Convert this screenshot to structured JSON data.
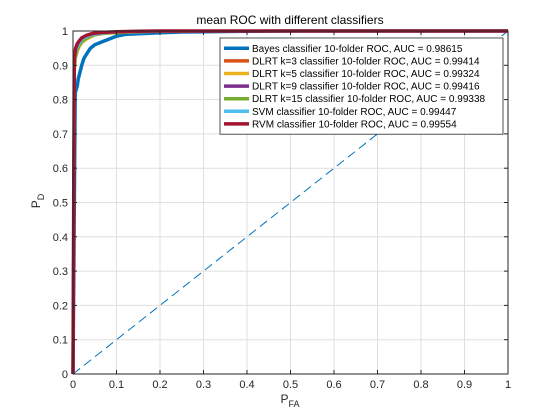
{
  "chart_data": {
    "type": "line",
    "title": "mean ROC with different classifiers",
    "xlabel": "P",
    "xlabel_sub": "FA",
    "ylabel": "P",
    "ylabel_sub": "D",
    "xlim": [
      0,
      1
    ],
    "ylim": [
      0,
      1
    ],
    "xticks": [
      0,
      0.1,
      0.2,
      0.3,
      0.4,
      0.5,
      0.6,
      0.7,
      0.8,
      0.9,
      1
    ],
    "yticks": [
      0,
      0.1,
      0.2,
      0.3,
      0.4,
      0.5,
      0.6,
      0.7,
      0.8,
      0.9,
      1
    ],
    "xtick_labels": [
      "0",
      "0.1",
      "0.2",
      "0.3",
      "0.4",
      "0.5",
      "0.6",
      "0.7",
      "0.8",
      "0.9",
      "1"
    ],
    "ytick_labels": [
      "0",
      "0.1",
      "0.2",
      "0.3",
      "0.4",
      "0.5",
      "0.6",
      "0.7",
      "0.8",
      "0.9",
      "1"
    ],
    "grid": true,
    "legend_position": "top-right",
    "series": [
      {
        "name": "Bayes classifier 10-folder ROC, AUC = 0.98615",
        "color": "#0072BD",
        "x": [
          0,
          0.005,
          0.01,
          0.012,
          0.016,
          0.02,
          0.025,
          0.03,
          0.035,
          0.04,
          0.05,
          0.06,
          0.07,
          0.08,
          0.09,
          0.1,
          0.12,
          0.15,
          0.2,
          0.25,
          0.3,
          0.4,
          0.5,
          1
        ],
        "y": [
          0,
          0.82,
          0.84,
          0.86,
          0.88,
          0.9,
          0.92,
          0.93,
          0.94,
          0.95,
          0.96,
          0.965,
          0.97,
          0.975,
          0.98,
          0.985,
          0.99,
          0.992,
          0.995,
          0.997,
          0.998,
          0.999,
          1,
          1
        ]
      },
      {
        "name": "DLRT k=3 classifier 10-folder ROC, AUC = 0.99414",
        "color": "#D95319",
        "x": [
          0,
          0.003,
          0.006,
          0.01,
          0.015,
          0.02,
          0.03,
          0.04,
          0.05,
          0.07,
          0.1,
          0.15,
          0.2,
          0.3,
          0.5,
          1
        ],
        "y": [
          0,
          0.9,
          0.93,
          0.95,
          0.96,
          0.97,
          0.98,
          0.985,
          0.99,
          0.993,
          0.996,
          0.998,
          0.999,
          1,
          1,
          1
        ]
      },
      {
        "name": "DLRT k=5 classifier 10-folder ROC, AUC = 0.99324",
        "color": "#EDB120",
        "x": [
          0,
          0.003,
          0.006,
          0.01,
          0.015,
          0.02,
          0.03,
          0.04,
          0.05,
          0.07,
          0.1,
          0.15,
          0.2,
          0.3,
          0.5,
          1
        ],
        "y": [
          0,
          0.88,
          0.92,
          0.94,
          0.955,
          0.965,
          0.975,
          0.982,
          0.988,
          0.992,
          0.995,
          0.997,
          0.999,
          1,
          1,
          1
        ]
      },
      {
        "name": "DLRT k=9 classifier 10-folder ROC, AUC = 0.99416",
        "color": "#7E2F8E",
        "x": [
          0,
          0.003,
          0.006,
          0.01,
          0.015,
          0.02,
          0.03,
          0.04,
          0.05,
          0.07,
          0.1,
          0.15,
          0.2,
          0.3,
          0.5,
          1
        ],
        "y": [
          0,
          0.9,
          0.935,
          0.952,
          0.962,
          0.972,
          0.98,
          0.986,
          0.99,
          0.994,
          0.996,
          0.998,
          0.999,
          1,
          1,
          1
        ]
      },
      {
        "name": "DLRT k=15 classifier 10-folder ROC, AUC = 0.99338",
        "color": "#77AC30",
        "x": [
          0,
          0.003,
          0.006,
          0.01,
          0.015,
          0.02,
          0.03,
          0.04,
          0.05,
          0.07,
          0.1,
          0.15,
          0.2,
          0.3,
          0.5,
          1
        ],
        "y": [
          0,
          0.89,
          0.925,
          0.945,
          0.958,
          0.968,
          0.978,
          0.984,
          0.989,
          0.993,
          0.995,
          0.997,
          0.999,
          1,
          1,
          1
        ]
      },
      {
        "name": "SVM classifier 10-folder ROC, AUC = 0.99447",
        "color": "#4DBEEE",
        "x": [
          0,
          0.003,
          0.006,
          0.01,
          0.015,
          0.02,
          0.03,
          0.04,
          0.05,
          0.07,
          0.1,
          0.15,
          0.2,
          0.3,
          0.5,
          1
        ],
        "y": [
          0,
          0.91,
          0.94,
          0.955,
          0.965,
          0.975,
          0.983,
          0.988,
          0.991,
          0.994,
          0.997,
          0.998,
          0.999,
          1,
          1,
          1
        ]
      },
      {
        "name": "RVM classifier 10-folder ROC, AUC = 0.99554",
        "color": "#A2142F",
        "x": [
          0,
          0.003,
          0.006,
          0.01,
          0.015,
          0.02,
          0.03,
          0.04,
          0.05,
          0.07,
          0.1,
          0.15,
          0.2,
          0.3,
          0.5,
          1
        ],
        "y": [
          0,
          0.92,
          0.95,
          0.963,
          0.972,
          0.98,
          0.987,
          0.991,
          0.994,
          0.996,
          0.998,
          0.999,
          1,
          1,
          1,
          1
        ]
      }
    ],
    "reference_line": {
      "x": [
        0,
        1
      ],
      "y": [
        0,
        1
      ],
      "color": "#0072BD"
    }
  }
}
